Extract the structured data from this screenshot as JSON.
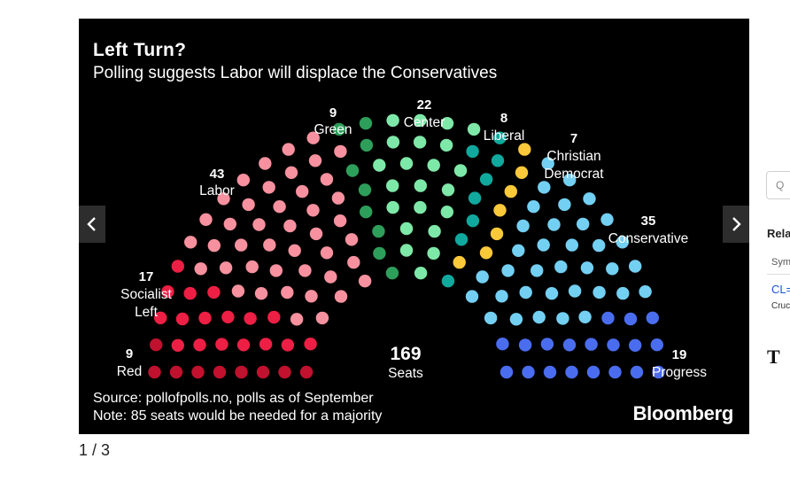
{
  "header": {
    "title": "Left Turn?",
    "subtitle": "Polling suggests Labor will displace the Conservatives"
  },
  "footer": {
    "source": "Source: pollofpolls.no, polls as of September",
    "note": "Note: 85 seats would be needed for a majority",
    "brand": "Bloomberg"
  },
  "carousel": {
    "pager": "1 / 3",
    "prev_icon": "chevron-left-icon",
    "next_icon": "chevron-right-icon"
  },
  "sidebar": {
    "search_placeholder": "Q",
    "related_heading": "Rela",
    "column_header": "Sym",
    "symbol": "CL=",
    "name": "Cruc",
    "icon_letter": "T"
  },
  "chart_data": {
    "type": "parliament",
    "title": "Left Turn?",
    "subtitle": "Polling suggests Labor will displace the Conservatives",
    "total_seats": 169,
    "total_label": "Seats",
    "majority": 85,
    "parties": [
      {
        "name": "Red",
        "seats": 9,
        "color": "#c0112e"
      },
      {
        "name": "Socialist Left",
        "seats": 17,
        "color": "#ee1f44"
      },
      {
        "name": "Labor",
        "seats": 43,
        "color": "#f7919f"
      },
      {
        "name": "Green",
        "seats": 9,
        "color": "#2e9e5b"
      },
      {
        "name": "Center",
        "seats": 22,
        "color": "#7ee8a8"
      },
      {
        "name": "Liberal",
        "seats": 8,
        "color": "#11a89e"
      },
      {
        "name": "Christian Democrat",
        "seats": 7,
        "color": "#fcc93a"
      },
      {
        "name": "Conservative",
        "seats": 35,
        "color": "#73d0f2"
      },
      {
        "name": "Progress",
        "seats": 19,
        "color": "#4a6df0"
      }
    ]
  }
}
